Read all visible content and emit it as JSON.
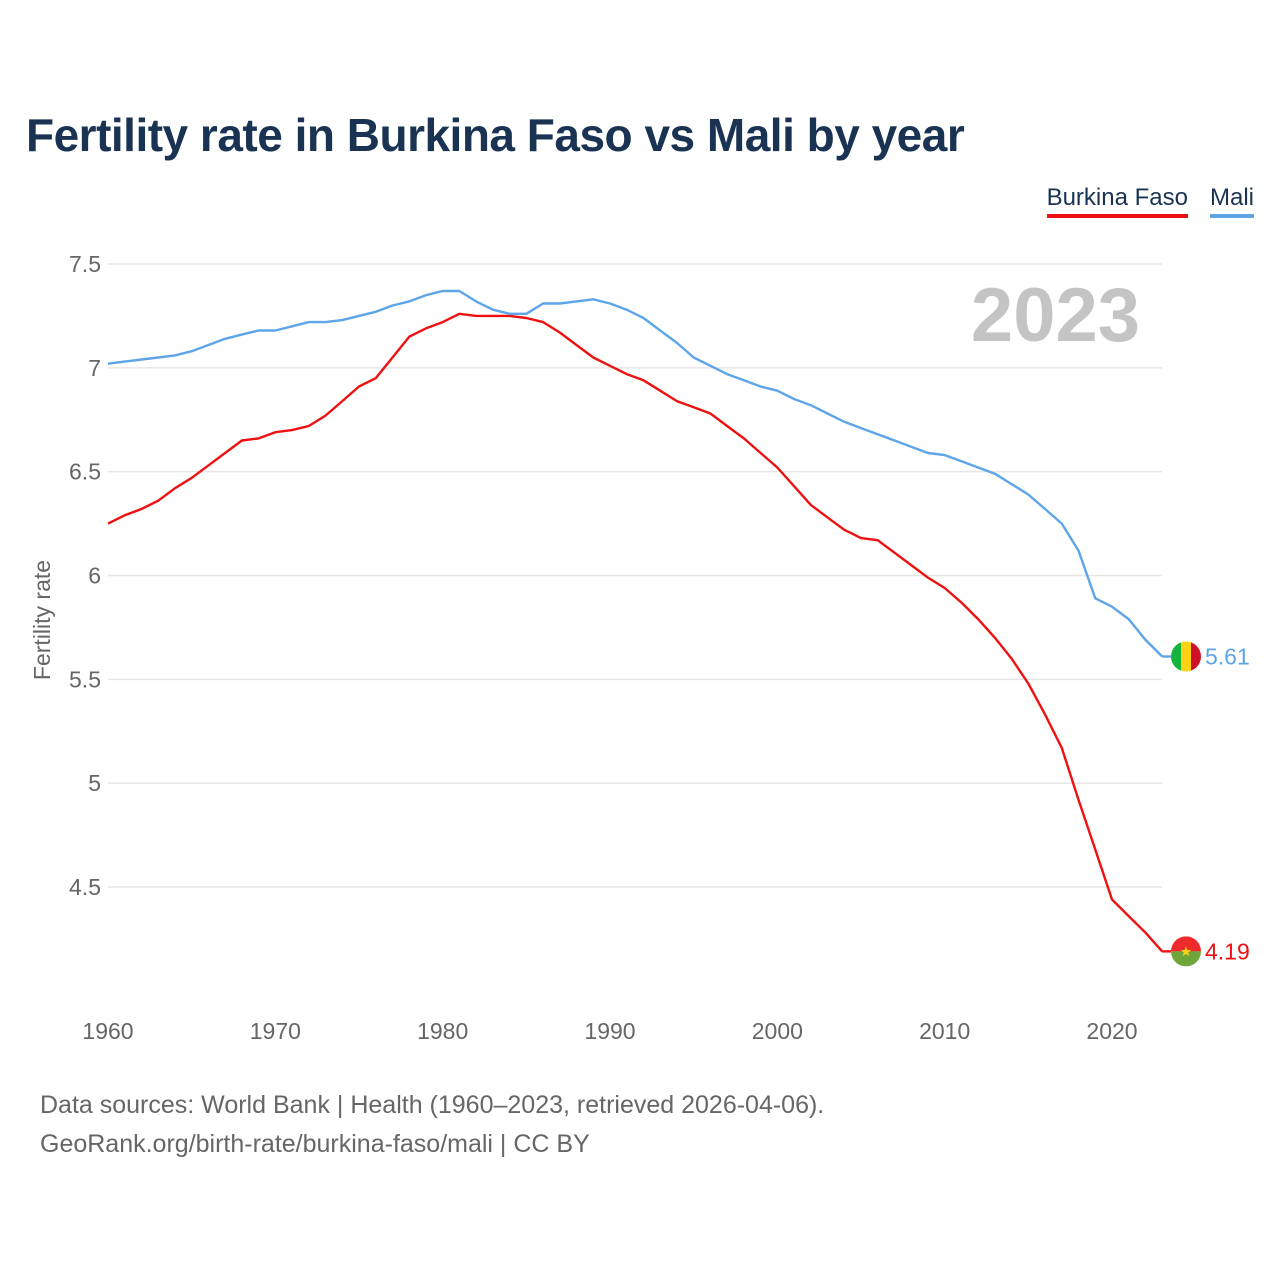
{
  "title": "Fertility rate in Burkina Faso vs Mali by year",
  "legend": {
    "series_a": "Burkina Faso",
    "series_b": "Mali"
  },
  "year_watermark": "2023",
  "sources": {
    "line1": "Data sources: World Bank | Health (1960–2023, retrieved 2026-04-06).",
    "line2": "GeoRank.org/birth-rate/burkina-faso/mali | CC BY"
  },
  "chart_data": {
    "type": "line",
    "title": "Fertility rate in Burkina Faso vs Mali by year",
    "xlabel": "",
    "ylabel": "Fertility rate",
    "xlim": [
      1960,
      2023
    ],
    "ylim": [
      4.0,
      7.6
    ],
    "x_ticks": [
      1960,
      1970,
      1980,
      1990,
      2000,
      2010,
      2020
    ],
    "y_ticks": [
      4.5,
      5,
      5.5,
      6,
      6.5,
      7,
      7.5
    ],
    "y_tick_labels": [
      "4.5",
      "5",
      "5.5",
      "6",
      "6.5",
      "7",
      "7.5"
    ],
    "grid": true,
    "legend_position": "top-right",
    "end_labels": {
      "Burkina Faso": "4.19",
      "Mali": "5.61"
    },
    "series": [
      {
        "name": "Burkina Faso",
        "color": "#ee1111",
        "x": [
          1960,
          1961,
          1962,
          1963,
          1964,
          1965,
          1966,
          1967,
          1968,
          1969,
          1970,
          1971,
          1972,
          1973,
          1974,
          1975,
          1976,
          1977,
          1978,
          1979,
          1980,
          1981,
          1982,
          1983,
          1984,
          1985,
          1986,
          1987,
          1988,
          1989,
          1990,
          1991,
          1992,
          1993,
          1994,
          1995,
          1996,
          1997,
          1998,
          1999,
          2000,
          2001,
          2002,
          2003,
          2004,
          2005,
          2006,
          2007,
          2008,
          2009,
          2010,
          2011,
          2012,
          2013,
          2014,
          2015,
          2016,
          2017,
          2018,
          2019,
          2020,
          2021,
          2022,
          2023
        ],
        "values": [
          6.25,
          6.29,
          6.32,
          6.36,
          6.42,
          6.47,
          6.53,
          6.59,
          6.65,
          6.66,
          6.69,
          6.7,
          6.72,
          6.77,
          6.84,
          6.91,
          6.95,
          7.05,
          7.15,
          7.19,
          7.22,
          7.26,
          7.25,
          7.25,
          7.25,
          7.24,
          7.22,
          7.17,
          7.11,
          7.05,
          7.01,
          6.97,
          6.94,
          6.89,
          6.84,
          6.81,
          6.78,
          6.72,
          6.66,
          6.59,
          6.52,
          6.43,
          6.34,
          6.28,
          6.22,
          6.18,
          6.17,
          6.11,
          6.05,
          5.99,
          5.94,
          5.87,
          5.79,
          5.7,
          5.6,
          5.48,
          5.33,
          5.17,
          4.92,
          4.68,
          4.44,
          4.36,
          4.28,
          4.19
        ]
      },
      {
        "name": "Mali",
        "color": "#5da5e8",
        "x": [
          1960,
          1961,
          1962,
          1963,
          1964,
          1965,
          1966,
          1967,
          1968,
          1969,
          1970,
          1971,
          1972,
          1973,
          1974,
          1975,
          1976,
          1977,
          1978,
          1979,
          1980,
          1981,
          1982,
          1983,
          1984,
          1985,
          1986,
          1987,
          1988,
          1989,
          1990,
          1991,
          1992,
          1993,
          1994,
          1995,
          1996,
          1997,
          1998,
          1999,
          2000,
          2001,
          2002,
          2003,
          2004,
          2005,
          2006,
          2007,
          2008,
          2009,
          2010,
          2011,
          2012,
          2013,
          2014,
          2015,
          2016,
          2017,
          2018,
          2019,
          2020,
          2021,
          2022,
          2023
        ],
        "values": [
          7.02,
          7.03,
          7.04,
          7.05,
          7.06,
          7.08,
          7.11,
          7.14,
          7.16,
          7.18,
          7.18,
          7.2,
          7.22,
          7.22,
          7.23,
          7.25,
          7.27,
          7.3,
          7.32,
          7.35,
          7.37,
          7.37,
          7.32,
          7.28,
          7.26,
          7.26,
          7.31,
          7.31,
          7.32,
          7.33,
          7.31,
          7.28,
          7.24,
          7.18,
          7.12,
          7.05,
          7.01,
          6.97,
          6.94,
          6.91,
          6.89,
          6.85,
          6.82,
          6.78,
          6.74,
          6.71,
          6.68,
          6.65,
          6.62,
          6.59,
          6.58,
          6.55,
          6.52,
          6.49,
          6.44,
          6.39,
          6.32,
          6.25,
          6.12,
          5.89,
          5.85,
          5.79,
          5.69,
          5.61
        ]
      }
    ]
  }
}
